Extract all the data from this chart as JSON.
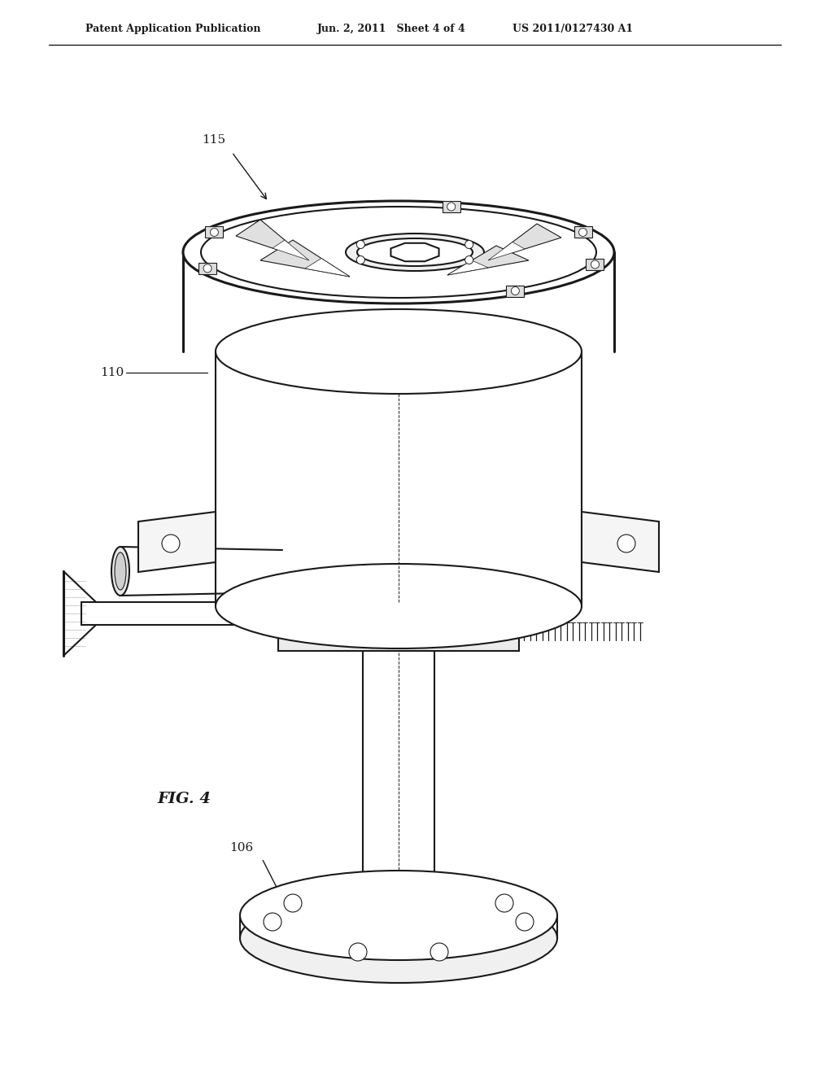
{
  "bg_color": "#ffffff",
  "line_color": "#1a1a1a",
  "header_left": "Patent Application Publication",
  "header_center": "Jun. 2, 2011   Sheet 4 of 4",
  "header_right": "US 2011/0127430 A1",
  "fig_label": "FIG. 4",
  "lw_main": 1.5,
  "lw_thin": 0.8,
  "lw_thick": 2.2
}
